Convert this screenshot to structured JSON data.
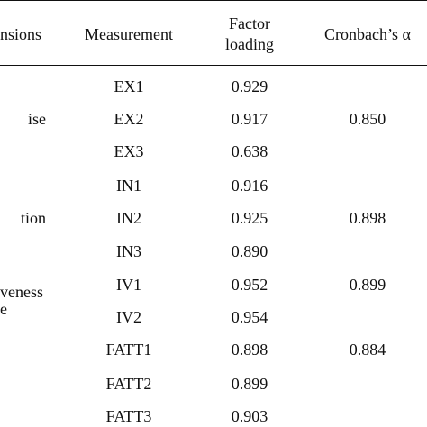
{
  "table": {
    "headers": {
      "dimensions": "nsions",
      "measurement": "Measurement",
      "factor_loading_line1": "Factor",
      "factor_loading_line2": "loading",
      "cronbach": "Cronbach’s α"
    },
    "rows": [
      {
        "measurement": "EX1",
        "loading": "0.929"
      },
      {
        "measurement": "EX2",
        "loading": "0.917"
      },
      {
        "measurement": "EX3",
        "loading": "0.638"
      },
      {
        "measurement": "IN1",
        "loading": "0.916"
      },
      {
        "measurement": "IN2",
        "loading": "0.925"
      },
      {
        "measurement": "IN3",
        "loading": "0.890"
      },
      {
        "measurement": "IV1",
        "loading": "0.952"
      },
      {
        "measurement": "IV2",
        "loading": "0.954"
      },
      {
        "measurement": "FATT1",
        "loading": "0.898"
      },
      {
        "measurement": "FATT2",
        "loading": "0.899"
      },
      {
        "measurement": "FATT3",
        "loading": "0.903"
      }
    ],
    "dimension_labels": [
      "ise",
      "tion",
      "veness",
      "e"
    ],
    "cronbach_values": [
      "0.850",
      "0.898",
      "0.899",
      "0.884"
    ]
  }
}
